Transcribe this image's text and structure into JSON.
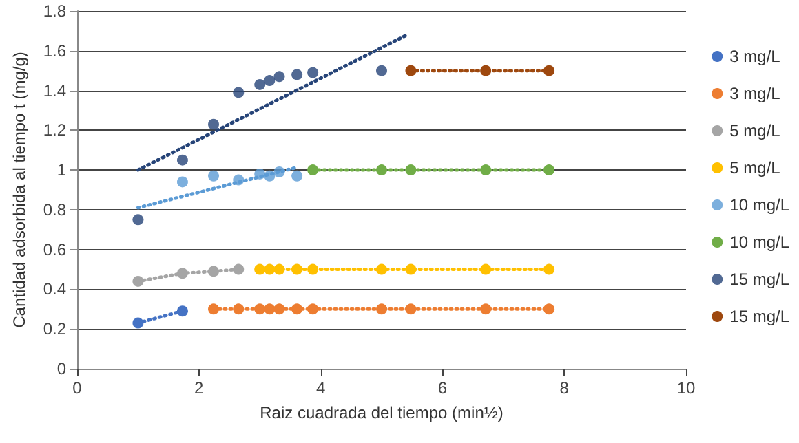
{
  "chart_data": {
    "type": "line",
    "xlabel": "Raiz cuadrada del tiempo (min½)",
    "ylabel": "Cantidad adsorbida al tiempo t (mg/g)",
    "xlim": [
      0,
      10
    ],
    "xticks": [
      0,
      2,
      4,
      6,
      8,
      10
    ],
    "ylim": [
      0,
      1.8
    ],
    "yticks": [
      0,
      0.2,
      0.4,
      0.6,
      0.8,
      1,
      1.2,
      1.4,
      1.6,
      1.8
    ],
    "grid": "y",
    "legend": "right",
    "marker": "circle",
    "line_style": "dotted",
    "series": [
      {
        "name": "3 mg/L",
        "color": "#4472c4",
        "x": [
          1,
          1.73
        ],
        "values": [
          0.23,
          0.29
        ]
      },
      {
        "name": "3 mg/L",
        "color": "#ed7d31",
        "x": [
          2.24,
          2.65,
          3,
          3.16,
          3.32,
          3.61,
          3.87,
          5,
          5.48,
          6.71,
          7.75
        ],
        "values": [
          0.3,
          0.3,
          0.3,
          0.3,
          0.3,
          0.3,
          0.3,
          0.3,
          0.3,
          0.3,
          0.3
        ]
      },
      {
        "name": "5 mg/L",
        "color": "#a5a5a5",
        "x": [
          1,
          1.73,
          2.24,
          2.65
        ],
        "values": [
          0.44,
          0.48,
          0.49,
          0.5
        ]
      },
      {
        "name": "5 mg/L",
        "color": "#ffc000",
        "x": [
          3,
          3.16,
          3.32,
          3.61,
          3.87,
          5,
          5.48,
          6.71,
          7.75
        ],
        "values": [
          0.5,
          0.5,
          0.5,
          0.5,
          0.5,
          0.5,
          0.5,
          0.5,
          0.5
        ]
      },
      {
        "name": "10 mg/L",
        "type": "scatter",
        "color": "#5b9bd5",
        "x": [
          1.73,
          2.24,
          2.65,
          3,
          3.16,
          3.32,
          3.61
        ],
        "values": [
          0.94,
          0.97,
          0.95,
          0.98,
          0.97,
          0.99,
          0.97
        ]
      },
      {
        "name": "10 mg/L",
        "color": "#70ad47",
        "x": [
          3.87,
          5,
          5.48,
          6.71,
          7.75
        ],
        "values": [
          1,
          1,
          1,
          1,
          1
        ]
      },
      {
        "name": "15 mg/L",
        "type": "scatter",
        "color": "#264478",
        "x": [
          1,
          1.73,
          2.24,
          2.65,
          3,
          3.16,
          3.32,
          3.61,
          3.87,
          5
        ],
        "values": [
          0.75,
          1.05,
          1.23,
          1.39,
          1.43,
          1.45,
          1.47,
          1.48,
          1.49,
          1.5
        ]
      },
      {
        "name": "15 mg/L",
        "color": "#9e480e",
        "x": [
          5.48,
          6.71,
          7.75
        ],
        "values": [
          1.5,
          1.5,
          1.5
        ]
      },
      {
        "color": "#5b9bd5",
        "marker": "none",
        "x": [
          1,
          3.57
        ],
        "values": [
          0.81,
          1.01
        ]
      },
      {
        "color": "#264478",
        "marker": "none",
        "x": [
          1,
          5.42
        ],
        "values": [
          1.0,
          1.68
        ]
      }
    ]
  }
}
